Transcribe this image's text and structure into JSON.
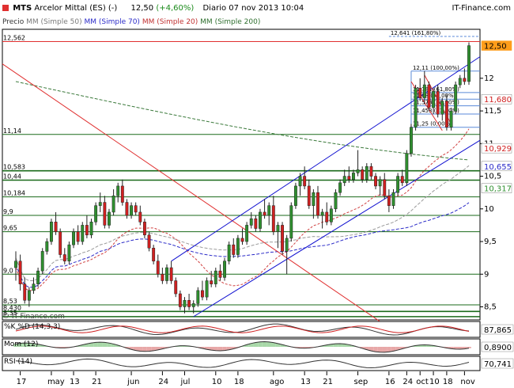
{
  "header": {
    "symbol": "MTS",
    "name": "Arcelor Mittal (ES) (-)",
    "last": "12,50",
    "change": "(+4,60%)",
    "period": "Diario",
    "datetime": "07 nov 2013 10:04",
    "brand": "IT-Finance.com"
  },
  "legend": {
    "price": "Precio",
    "ma50": "MM (Simple 50)",
    "ma70": "MM (Simple 70)",
    "ma20": "MM (Simple 20)",
    "ma200": "MM (Simple 200)"
  },
  "copyright": "© IT-Finance.com",
  "colors": {
    "up": "#2f8f2f",
    "down": "#d02020",
    "ma50": "#9a9a9a",
    "ma70": "#2a2ac8",
    "ma20": "#d04040",
    "ma200": "#3c7a3c",
    "trend_blue": "#1010d0",
    "trend_red": "#e03030",
    "hline": "#1a6a1a",
    "fib": "#5a8ad8",
    "accent": "#e03030"
  },
  "chart_data": [
    {
      "type": "candlestick",
      "title": "MTS Arcelor Mittal (ES) (-)",
      "series_names": [
        "Precio",
        "MM (Simple 50)",
        "MM (Simple 70)",
        "MM (Simple 20)",
        "MM (Simple 200)"
      ],
      "x_labels": [
        "17",
        "may",
        "13",
        "21",
        "jun",
        "24",
        "jul",
        "10",
        "18",
        "ago",
        "13",
        "21",
        "sep",
        "16",
        "24",
        "oct",
        "10",
        "18",
        "nov"
      ],
      "y_ticks": [
        8.5,
        9,
        9.5,
        10,
        10.5,
        11,
        11.5,
        12
      ],
      "ylim": [
        8.3,
        12.75
      ],
      "last_price": 12.5,
      "right_labels": [
        "12,50",
        "11,680",
        "10,929",
        "10,655",
        "10,317"
      ],
      "left_labels": [
        "12,562",
        "11,14",
        "10,583",
        "10,44",
        "10,184",
        "9,9",
        "9,65",
        "9,0",
        "8,53",
        "8,430",
        "8,35"
      ],
      "horizontal_levels": [
        12.562,
        11.14,
        10.583,
        10.44,
        10.184,
        9.9,
        9.65,
        9.0,
        8.53,
        8.43,
        8.35
      ],
      "fibonacci": [
        {
          "label": "12,641 (161,80%)",
          "value": 12.641
        },
        {
          "label": "12,11 (100,00%)",
          "value": 12.11
        },
        {
          "label": "11,781 (61,80%)",
          "value": 11.781
        },
        {
          "label": "11,68 (50,00%)",
          "value": 11.68
        },
        {
          "label": "11,578 (38,20%)",
          "value": 11.578
        },
        {
          "label": "11,453 (23,60%)",
          "value": 11.453
        },
        {
          "label": "11,25 (0,00%)",
          "value": 11.25
        }
      ],
      "grid": false,
      "candles": [
        [
          9.1,
          9.35,
          8.9,
          9.2
        ],
        [
          9.2,
          9.3,
          8.75,
          8.85
        ],
        [
          8.85,
          8.95,
          8.55,
          8.6
        ],
        [
          8.6,
          8.8,
          8.5,
          8.75
        ],
        [
          8.75,
          8.95,
          8.7,
          8.85
        ],
        [
          8.85,
          9.1,
          8.8,
          9.05
        ],
        [
          9.05,
          9.4,
          9.0,
          9.35
        ],
        [
          9.35,
          9.55,
          9.3,
          9.5
        ],
        [
          9.5,
          9.85,
          9.45,
          9.8
        ],
        [
          9.8,
          9.95,
          9.6,
          9.65
        ],
        [
          9.65,
          9.7,
          9.25,
          9.3
        ],
        [
          9.3,
          9.4,
          9.15,
          9.2
        ],
        [
          9.2,
          9.5,
          9.15,
          9.45
        ],
        [
          9.45,
          9.7,
          9.4,
          9.65
        ],
        [
          9.65,
          9.75,
          9.45,
          9.5
        ],
        [
          9.5,
          9.8,
          9.45,
          9.75
        ],
        [
          9.75,
          9.9,
          9.55,
          9.6
        ],
        [
          9.6,
          9.85,
          9.55,
          9.8
        ],
        [
          9.8,
          10.1,
          9.75,
          10.05
        ],
        [
          10.05,
          10.25,
          9.95,
          10.1
        ],
        [
          10.1,
          10.2,
          9.7,
          9.75
        ],
        [
          9.75,
          10.0,
          9.7,
          9.95
        ],
        [
          9.95,
          10.3,
          9.9,
          10.2
        ],
        [
          10.2,
          10.4,
          10.1,
          10.35
        ],
        [
          10.35,
          10.45,
          10.05,
          10.1
        ],
        [
          10.1,
          10.15,
          9.85,
          9.9
        ],
        [
          9.9,
          10.1,
          9.85,
          10.05
        ],
        [
          10.05,
          10.1,
          9.9,
          9.95
        ],
        [
          9.95,
          10.05,
          9.75,
          9.8
        ],
        [
          9.8,
          9.85,
          9.55,
          9.6
        ],
        [
          9.6,
          9.65,
          9.35,
          9.4
        ],
        [
          9.4,
          9.45,
          9.15,
          9.2
        ],
        [
          9.2,
          9.3,
          8.95,
          9.0
        ],
        [
          9.0,
          9.1,
          8.85,
          8.9
        ],
        [
          8.9,
          9.15,
          8.85,
          9.1
        ],
        [
          9.1,
          9.2,
          8.85,
          8.9
        ],
        [
          8.9,
          8.95,
          8.65,
          8.7
        ],
        [
          8.7,
          8.75,
          8.45,
          8.5
        ],
        [
          8.5,
          8.65,
          8.4,
          8.6
        ],
        [
          8.6,
          8.7,
          8.45,
          8.5
        ],
        [
          8.5,
          8.6,
          8.4,
          8.55
        ],
        [
          8.55,
          8.8,
          8.5,
          8.75
        ],
        [
          8.75,
          8.9,
          8.6,
          8.65
        ],
        [
          8.65,
          8.95,
          8.6,
          8.9
        ],
        [
          8.9,
          9.05,
          8.8,
          8.85
        ],
        [
          8.85,
          9.1,
          8.8,
          9.05
        ],
        [
          9.05,
          9.15,
          8.9,
          8.95
        ],
        [
          8.95,
          9.25,
          8.9,
          9.2
        ],
        [
          9.2,
          9.5,
          9.15,
          9.45
        ],
        [
          9.45,
          9.55,
          9.25,
          9.3
        ],
        [
          9.3,
          9.6,
          9.25,
          9.55
        ],
        [
          9.55,
          9.7,
          9.45,
          9.5
        ],
        [
          9.5,
          9.8,
          9.45,
          9.75
        ],
        [
          9.75,
          9.95,
          9.7,
          9.85
        ],
        [
          9.85,
          9.9,
          9.65,
          9.7
        ],
        [
          9.7,
          10.0,
          9.65,
          9.95
        ],
        [
          9.95,
          10.15,
          9.85,
          9.9
        ],
        [
          9.9,
          10.1,
          9.75,
          10.05
        ],
        [
          10.05,
          10.2,
          9.6,
          9.65
        ],
        [
          9.65,
          9.8,
          9.4,
          9.75
        ],
        [
          9.75,
          9.8,
          9.3,
          9.35
        ],
        [
          9.35,
          9.6,
          9.0,
          9.55
        ],
        [
          9.55,
          10.1,
          9.5,
          10.05
        ],
        [
          10.05,
          10.4,
          10.0,
          10.35
        ],
        [
          10.35,
          10.55,
          10.2,
          10.5
        ],
        [
          10.5,
          10.65,
          10.3,
          10.35
        ],
        [
          10.35,
          10.45,
          10.0,
          10.05
        ],
        [
          10.05,
          10.3,
          9.85,
          10.25
        ],
        [
          10.25,
          10.35,
          9.85,
          9.9
        ],
        [
          9.9,
          10.0,
          9.7,
          9.95
        ],
        [
          9.95,
          10.1,
          9.75,
          9.8
        ],
        [
          9.8,
          10.05,
          9.75,
          10.0
        ],
        [
          10.0,
          10.3,
          9.95,
          10.25
        ],
        [
          10.25,
          10.45,
          10.2,
          10.4
        ],
        [
          10.4,
          10.6,
          10.35,
          10.5
        ],
        [
          10.5,
          10.65,
          10.4,
          10.45
        ],
        [
          10.45,
          10.6,
          10.4,
          10.55
        ],
        [
          10.55,
          10.9,
          10.5,
          10.6
        ],
        [
          10.6,
          10.65,
          10.4,
          10.45
        ],
        [
          10.45,
          10.7,
          10.4,
          10.65
        ],
        [
          10.65,
          10.7,
          10.45,
          10.5
        ],
        [
          10.5,
          10.55,
          10.3,
          10.35
        ],
        [
          10.35,
          10.5,
          10.2,
          10.45
        ],
        [
          10.45,
          10.55,
          10.15,
          10.2
        ],
        [
          10.2,
          10.3,
          9.95,
          10.05
        ],
        [
          10.05,
          10.3,
          10.0,
          10.25
        ],
        [
          10.25,
          10.55,
          10.2,
          10.5
        ],
        [
          10.5,
          10.6,
          10.35,
          10.4
        ],
        [
          10.4,
          10.9,
          10.35,
          10.85
        ],
        [
          10.85,
          11.3,
          10.8,
          11.25
        ],
        [
          11.25,
          11.9,
          11.2,
          11.85
        ],
        [
          11.85,
          12.0,
          11.65,
          11.7
        ],
        [
          11.7,
          12.11,
          11.6,
          11.9
        ],
        [
          11.9,
          11.95,
          11.5,
          11.55
        ],
        [
          11.55,
          11.85,
          11.45,
          11.8
        ],
        [
          11.8,
          11.9,
          11.4,
          11.45
        ],
        [
          11.45,
          11.7,
          11.35,
          11.65
        ],
        [
          11.65,
          11.75,
          11.2,
          11.25
        ],
        [
          11.25,
          11.55,
          11.2,
          11.5
        ],
        [
          11.5,
          11.95,
          11.45,
          11.9
        ],
        [
          11.9,
          12.05,
          11.85,
          12.0
        ],
        [
          12.0,
          12.15,
          11.9,
          11.95
        ],
        [
          11.95,
          12.55,
          11.9,
          12.5
        ]
      ],
      "indicators": [
        {
          "name": "%K %D (14,3,3)",
          "value": "87,865"
        },
        {
          "name": "Mom (12)",
          "value": "0,8900"
        },
        {
          "name": "RSI (14)",
          "value": "70,741"
        }
      ]
    }
  ]
}
